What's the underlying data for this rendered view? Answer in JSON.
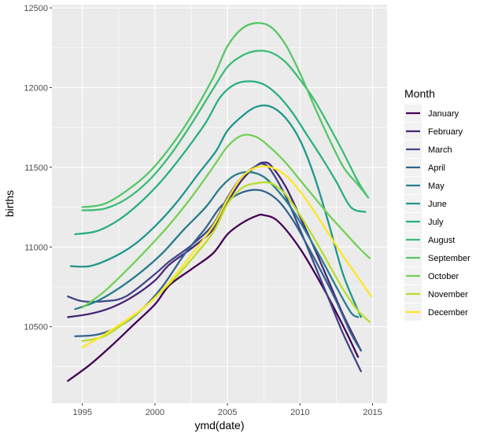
{
  "chart_data": {
    "type": "line",
    "title": "",
    "xlabel": "ymd(date)",
    "ylabel": "births",
    "xlim": [
      1992.9,
      2016.0
    ],
    "ylim": [
      10020,
      12520
    ],
    "x_ticks": [
      1995,
      2000,
      2005,
      2010,
      2015
    ],
    "x_tick_labels": [
      "1995",
      "2000",
      "2005",
      "2010",
      "2015"
    ],
    "y_ticks": [
      10500,
      11000,
      11500,
      12000,
      12500
    ],
    "y_tick_labels": [
      "10500",
      "11000",
      "11500",
      "12000",
      "12500"
    ],
    "grid": true,
    "legend": {
      "title": "Month",
      "position": "right"
    },
    "series": [
      {
        "name": "January",
        "color": "#440154",
        "x": [
          1994.0,
          1995.5,
          1997.0,
          1998.5,
          2000.0,
          2001.0,
          2002.5,
          2004.0,
          2005.0,
          2006.0,
          2007.0,
          2007.5,
          2008.5,
          2010.0,
          2011.5,
          2013.0,
          2014.0
        ],
        "y": [
          10160,
          10260,
          10380,
          10510,
          10640,
          10760,
          10860,
          10960,
          11080,
          11150,
          11195,
          11200,
          11160,
          10990,
          10760,
          10500,
          10310
        ]
      },
      {
        "name": "February",
        "color": "#482677",
        "x": [
          1994.0,
          1995.5,
          1997.0,
          1998.5,
          2000.0,
          2001.0,
          2002.5,
          2004.0,
          2005.0,
          2006.0,
          2007.0,
          2007.5,
          2008.0,
          2009.0,
          2010.0,
          2011.0,
          2012.0,
          2013.0,
          2014.2
        ],
        "y": [
          10560,
          10580,
          10620,
          10690,
          10790,
          10890,
          10990,
          11110,
          11280,
          11420,
          11510,
          11530,
          11510,
          11380,
          11190,
          10990,
          10780,
          10570,
          10350
        ]
      },
      {
        "name": "March",
        "color": "#404688",
        "x": [
          1994.0,
          1995.0,
          1996.5,
          1998.0,
          2000.0,
          2001.0,
          2002.5,
          2004.0,
          2005.0,
          2006.0,
          2007.0,
          2007.5,
          2008.0,
          2009.0,
          2010.0,
          2011.0,
          2012.0,
          2013.0,
          2014.2
        ],
        "y": [
          10690,
          10660,
          10660,
          10690,
          10830,
          10910,
          11010,
          11140,
          11310,
          11440,
          11510,
          11520,
          11480,
          11320,
          11110,
          10890,
          10670,
          10450,
          10220
        ]
      },
      {
        "name": "April",
        "color": "#33638D",
        "x": [
          1994.5,
          1996.0,
          1997.5,
          1999.0,
          2000.5,
          2002.0,
          2003.5,
          2004.5,
          2005.5,
          2006.5,
          2007.5,
          2008.5,
          2009.5,
          2010.5,
          2011.5,
          2012.5,
          2013.5,
          2014.2
        ],
        "y": [
          10440,
          10450,
          10500,
          10600,
          10750,
          10950,
          11120,
          11250,
          11320,
          11355,
          11350,
          11290,
          11170,
          11010,
          10840,
          10660,
          10460,
          10350
        ]
      },
      {
        "name": "May",
        "color": "#287D8E",
        "x": [
          1994.5,
          1996.0,
          1997.5,
          1999.0,
          2000.5,
          2002.0,
          2003.5,
          2004.5,
          2005.5,
          2006.5,
          2007.5,
          2008.5,
          2009.5,
          2010.5,
          2011.5,
          2012.5,
          2013.5,
          2014.0
        ],
        "y": [
          10610,
          10660,
          10740,
          10840,
          10960,
          11110,
          11250,
          11370,
          11450,
          11470,
          11440,
          11350,
          11230,
          11080,
          10920,
          10750,
          10590,
          10560
        ]
      },
      {
        "name": "June",
        "color": "#1F968B",
        "x": [
          1994.2,
          1995.5,
          1997.0,
          1998.5,
          2000.0,
          2001.5,
          2003.0,
          2004.2,
          2005.0,
          2006.0,
          2007.0,
          2008.0,
          2009.0,
          2010.0,
          2011.0,
          2012.0,
          2013.0,
          2014.2
        ],
        "y": [
          10880,
          10880,
          10930,
          11010,
          11130,
          11280,
          11460,
          11600,
          11730,
          11820,
          11880,
          11880,
          11810,
          11670,
          11440,
          11140,
          10820,
          10560
        ]
      },
      {
        "name": "July",
        "color": "#29AF7F",
        "x": [
          1994.5,
          1996.0,
          1997.5,
          1999.0,
          2000.5,
          2002.0,
          2003.5,
          2004.5,
          2005.5,
          2006.5,
          2007.5,
          2008.5,
          2009.5,
          2010.5,
          2011.5,
          2012.5,
          2013.5,
          2014.5
        ],
        "y": [
          11080,
          11100,
          11170,
          11280,
          11420,
          11590,
          11780,
          11940,
          12020,
          12040,
          12020,
          11950,
          11840,
          11700,
          11560,
          11410,
          11250,
          11220
        ]
      },
      {
        "name": "August",
        "color": "#3CBB75",
        "x": [
          1995.0,
          1996.5,
          1998.0,
          1999.5,
          2001.0,
          2002.5,
          2004.0,
          2005.0,
          2006.0,
          2007.0,
          2008.0,
          2009.0,
          2010.0,
          2011.0,
          2012.0,
          2013.0,
          2014.0,
          2014.7
        ],
        "y": [
          11230,
          11240,
          11300,
          11410,
          11570,
          11770,
          11990,
          12130,
          12200,
          12230,
          12220,
          12160,
          12050,
          11920,
          11760,
          11590,
          11410,
          11310
        ]
      },
      {
        "name": "September",
        "color": "#55C667",
        "x": [
          1995.0,
          1996.5,
          1998.0,
          1999.5,
          2001.0,
          2002.5,
          2004.0,
          2005.0,
          2006.0,
          2007.0,
          2008.0,
          2009.0,
          2010.0,
          2011.0,
          2012.0,
          2013.0,
          2014.0,
          2014.7
        ],
        "y": [
          11250,
          11270,
          11350,
          11460,
          11620,
          11820,
          12060,
          12260,
          12370,
          12405,
          12380,
          12270,
          12090,
          11880,
          11680,
          11500,
          11390,
          11310
        ]
      },
      {
        "name": "October",
        "color": "#73D055",
        "x": [
          1995.0,
          1996.5,
          1998.0,
          1999.5,
          2001.0,
          2002.5,
          2004.0,
          2005.0,
          2006.0,
          2007.0,
          2008.0,
          2009.0,
          2010.0,
          2011.0,
          2012.0,
          2013.0,
          2014.0,
          2014.8
        ],
        "y": [
          10620,
          10720,
          10850,
          10990,
          11140,
          11310,
          11500,
          11630,
          11700,
          11690,
          11620,
          11530,
          11420,
          11310,
          11200,
          11100,
          11000,
          10930
        ]
      },
      {
        "name": "November",
        "color": "#B8DE29",
        "x": [
          1995.0,
          1996.5,
          1998.0,
          1999.5,
          2001.0,
          2002.5,
          2004.0,
          2005.0,
          2006.0,
          2007.0,
          2008.0,
          2009.0,
          2010.0,
          2011.0,
          2012.0,
          2013.0,
          2014.0,
          2014.8
        ],
        "y": [
          10410,
          10440,
          10530,
          10640,
          10770,
          10920,
          11090,
          11270,
          11370,
          11400,
          11400,
          11330,
          11200,
          11050,
          10890,
          10730,
          10600,
          10530
        ]
      },
      {
        "name": "December",
        "color": "#FDE725",
        "x": [
          1995.0,
          1996.5,
          1998.0,
          1999.5,
          2001.0,
          2002.5,
          2004.0,
          2005.0,
          2006.0,
          2007.0,
          2008.0,
          2009.0,
          2010.0,
          2011.0,
          2012.0,
          2013.0,
          2014.0,
          2014.9
        ],
        "y": [
          10370,
          10450,
          10540,
          10640,
          10780,
          10950,
          11130,
          11300,
          11440,
          11500,
          11500,
          11450,
          11350,
          11220,
          11080,
          10940,
          10810,
          10690
        ]
      }
    ]
  }
}
